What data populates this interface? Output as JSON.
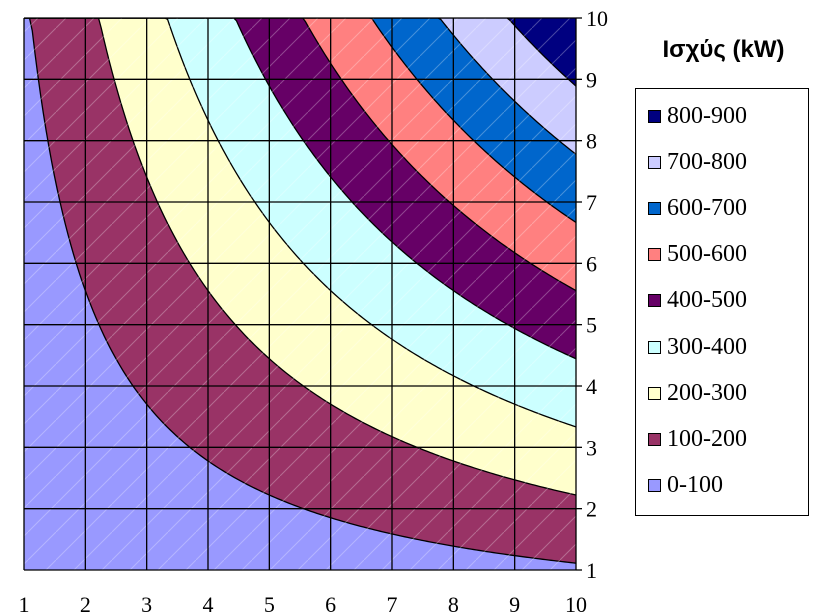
{
  "chart_data": {
    "type": "contour",
    "function": "power = 9 * x * y",
    "x": [
      1,
      2,
      3,
      4,
      5,
      6,
      7,
      8,
      9,
      10
    ],
    "y": [
      1,
      2,
      3,
      4,
      5,
      6,
      7,
      8,
      9,
      10
    ],
    "xlim": [
      1,
      10
    ],
    "ylim": [
      1,
      10
    ],
    "x_ticks": [
      "1",
      "2",
      "3",
      "4",
      "5",
      "6",
      "7",
      "8",
      "9",
      "10"
    ],
    "y_ticks": [
      "1",
      "2",
      "3",
      "4",
      "5",
      "6",
      "7",
      "8",
      "9",
      "10"
    ],
    "grid": true,
    "legend_placement": "right",
    "legend_title": "Ισχύς (kW)",
    "bands": [
      {
        "label": "800-900",
        "min": 800,
        "max": 900,
        "color": "#000080"
      },
      {
        "label": "700-800",
        "min": 700,
        "max": 800,
        "color": "#ccccff"
      },
      {
        "label": "600-700",
        "min": 600,
        "max": 700,
        "color": "#0066cc"
      },
      {
        "label": "500-600",
        "min": 500,
        "max": 600,
        "color": "#ff8080"
      },
      {
        "label": "400-500",
        "min": 400,
        "max": 500,
        "color": "#660066"
      },
      {
        "label": "300-400",
        "min": 300,
        "max": 400,
        "color": "#ccffff"
      },
      {
        "label": "200-300",
        "min": 200,
        "max": 300,
        "color": "#ffffcc"
      },
      {
        "label": "100-200",
        "min": 100,
        "max": 200,
        "color": "#993366"
      },
      {
        "label": "0-100",
        "min": 0,
        "max": 100,
        "color": "#9999ff"
      }
    ]
  }
}
